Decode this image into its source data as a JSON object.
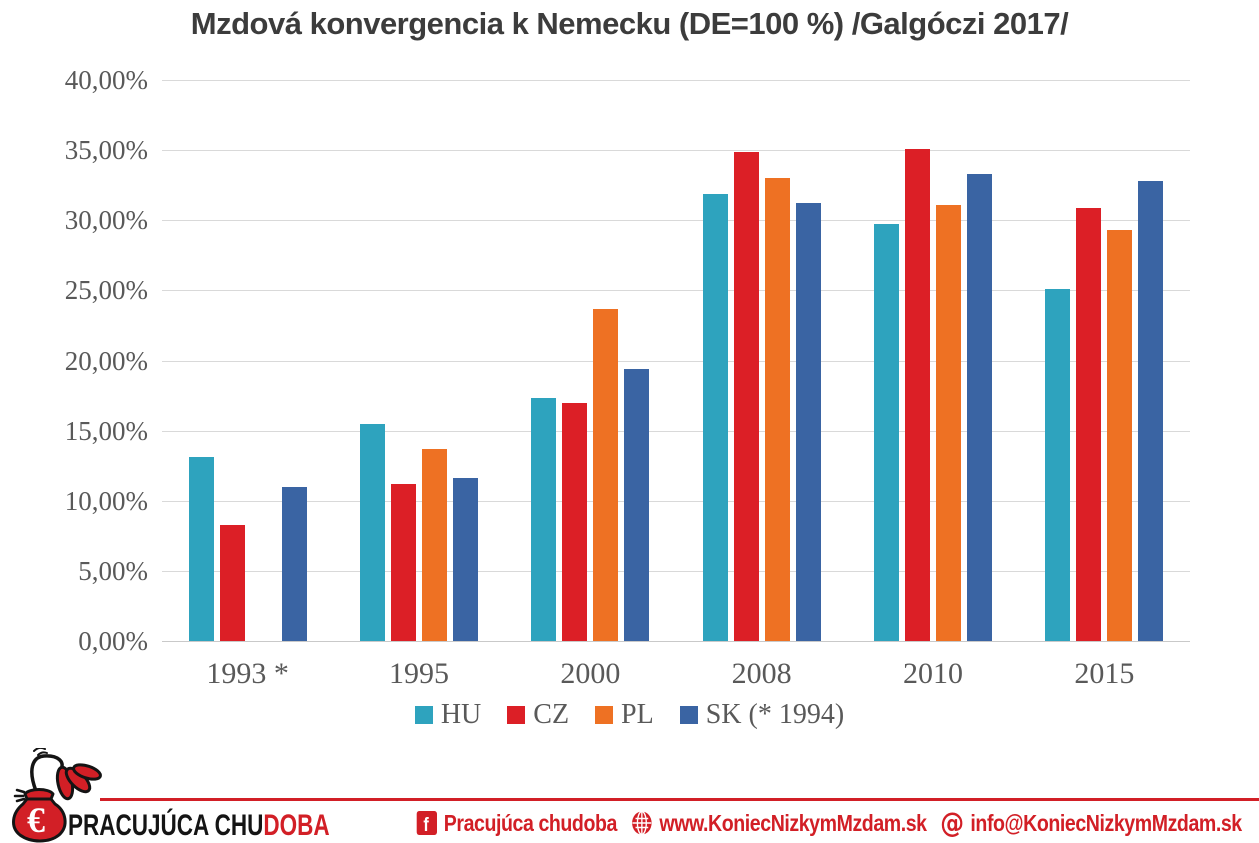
{
  "title": "Mzdová konvergencia k Nemecku (DE=100 %) /Galgóczi 2017/",
  "chart_data": {
    "type": "bar",
    "categories": [
      "1993 *",
      "1995",
      "2000",
      "2008",
      "2010",
      "2015"
    ],
    "series": [
      {
        "name": "HU",
        "color": "#2ea3be",
        "values": [
          13.1,
          15.5,
          17.3,
          31.9,
          29.7,
          25.1
        ]
      },
      {
        "name": "CZ",
        "color": "#dc1f26",
        "values": [
          8.3,
          11.2,
          17.0,
          34.9,
          35.1,
          30.9
        ]
      },
      {
        "name": "PL",
        "color": "#ee7123",
        "values": [
          null,
          13.7,
          23.7,
          33.0,
          31.1,
          29.3
        ]
      },
      {
        "name": "SK (* 1994)",
        "color": "#3a64a3",
        "values": [
          11.0,
          11.6,
          19.4,
          31.2,
          33.3,
          32.8
        ]
      }
    ],
    "y_ticks": [
      "40,00%",
      "35,00%",
      "30,00%",
      "25,00%",
      "20,00%",
      "15,00%",
      "10,00%",
      "5,00%",
      "0,00%"
    ],
    "ylim": [
      0,
      40
    ],
    "grid": true,
    "legend_position": "bottom"
  },
  "footer": {
    "logo": {
      "brand_black": "PRACUJÚCA CHU",
      "brand_red": "DOBA",
      "euro_symbol": "€"
    },
    "accent_color": "#d21f26",
    "links": [
      {
        "icon": "facebook-icon",
        "label": "Pracujúca chudoba"
      },
      {
        "icon": "globe-icon",
        "label": "www.KoniecNizkymMzdam.sk"
      },
      {
        "icon": "at-icon",
        "label": "info@KoniecNizkymMzdam.sk"
      }
    ]
  }
}
